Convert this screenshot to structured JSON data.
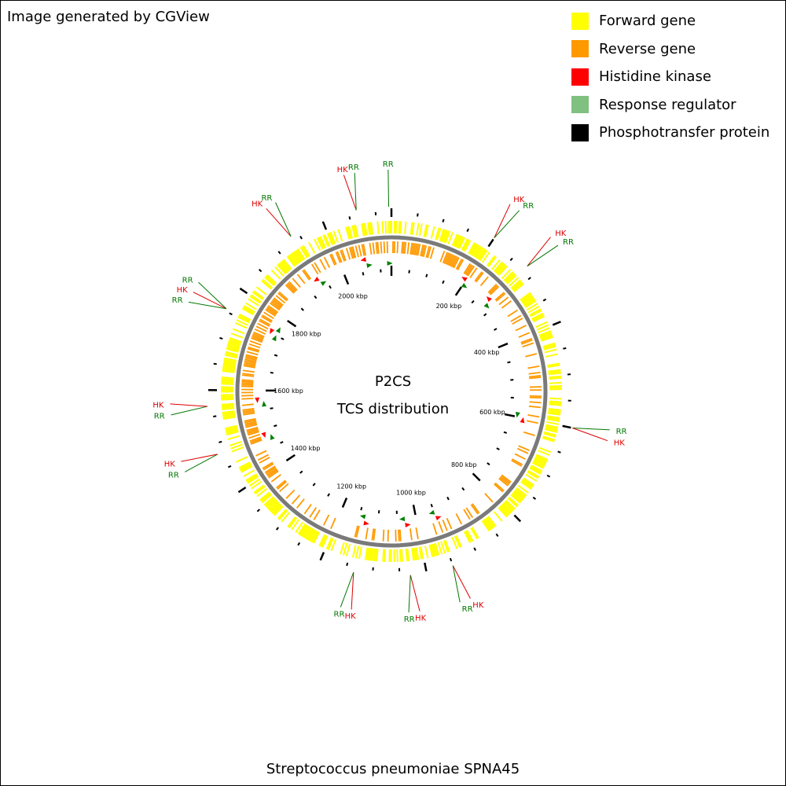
{
  "credit": "Image generated by CGView",
  "legend": [
    {
      "label": "Forward gene",
      "color": "#ffff00",
      "key": "forward"
    },
    {
      "label": "Reverse gene",
      "color": "#ff9900",
      "key": "reverse"
    },
    {
      "label": "Histidine kinase",
      "color": "#ff0000",
      "key": "hk"
    },
    {
      "label": "Response regulator",
      "color": "#80c080",
      "key": "rr"
    },
    {
      "label": "Phosphotransfer protein",
      "color": "#000000",
      "key": "hpt"
    }
  ],
  "center": {
    "line1": "P2CS",
    "line2": "TCS distribution"
  },
  "genome": {
    "name": "Streptococcus pneumoniae SPNA45",
    "length_kbp": 2130
  },
  "ticks": {
    "labels": [
      "200 kbp",
      "400 kbp",
      "600 kbp",
      "800 kbp",
      "1000 kbp",
      "1200 kbp",
      "1400 kbp",
      "1600 kbp",
      "1800 kbp",
      "2000 kbp"
    ]
  },
  "tcs_features": [
    {
      "labels": [
        "HK",
        "RR"
      ],
      "position_kbp": 1935,
      "strands": [
        "rev",
        "fwd"
      ]
    },
    {
      "labels": [
        "HK",
        "RR"
      ],
      "position_kbp": 2065,
      "strands": [
        "rev",
        "fwd"
      ]
    },
    {
      "labels": [
        "RR"
      ],
      "position_kbp": 2125,
      "strands": [
        "fwd"
      ]
    },
    {
      "labels": [
        "HK",
        "RR"
      ],
      "position_kbp": 200,
      "strands": [
        "rev",
        "fwd"
      ]
    },
    {
      "labels": [
        "HK",
        "RR"
      ],
      "position_kbp": 280,
      "strands": [
        "rev",
        "fwd"
      ]
    },
    {
      "labels": [
        "RR",
        "HK"
      ],
      "position_kbp": 600,
      "strands": [
        "fwd",
        "rev"
      ]
    },
    {
      "labels": [
        "HK",
        "RR"
      ],
      "position_kbp": 950,
      "strands": [
        "rev",
        "fwd"
      ]
    },
    {
      "labels": [
        "HK",
        "RR"
      ],
      "position_kbp": 1030,
      "strands": [
        "rev",
        "fwd"
      ]
    },
    {
      "labels": [
        "HK",
        "RR"
      ],
      "position_kbp": 1135,
      "strands": [
        "rev",
        "fwd"
      ]
    },
    {
      "labels": [
        "RR",
        "HK"
      ],
      "position_kbp": 1480,
      "strands": [
        "fwd",
        "rev"
      ]
    },
    {
      "labels": [
        "RR",
        "HK"
      ],
      "position_kbp": 1570,
      "strands": [
        "fwd",
        "rev"
      ]
    },
    {
      "labels": [
        "RR",
        "HK",
        "RR"
      ],
      "position_kbp": 1755,
      "strands": [
        "fwd",
        "rev",
        "fwd"
      ]
    }
  ],
  "colors": {
    "hk_label": "#dd0000",
    "rr_label": "#007700",
    "backbone": "#7a7a7a"
  }
}
